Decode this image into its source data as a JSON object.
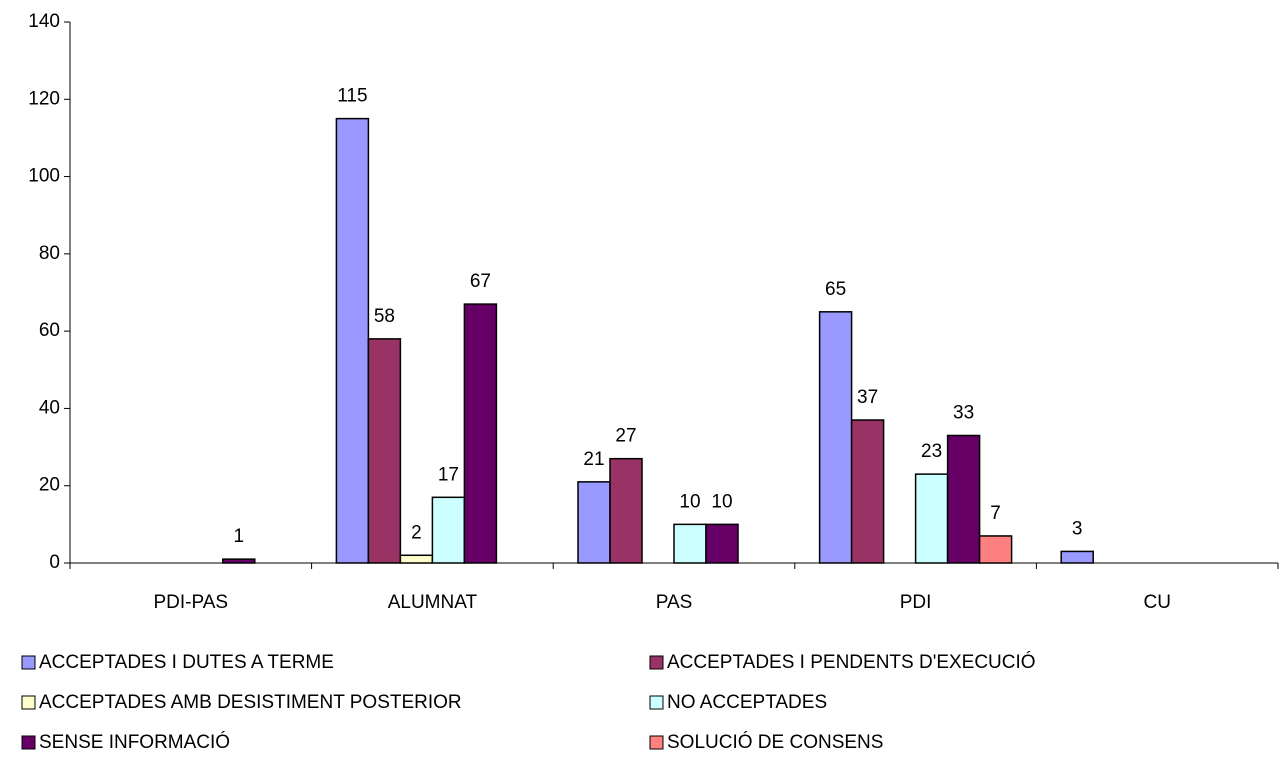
{
  "chart_data": {
    "type": "bar",
    "categories": [
      "PDI-PAS",
      "ALUMNAT",
      "PAS",
      "PDI",
      "CU"
    ],
    "series": [
      {
        "name": "ACCEPTADES I DUTES A TERME",
        "color": "#9999ff",
        "values": [
          null,
          115,
          21,
          65,
          3
        ]
      },
      {
        "name": "ACCEPTADES I PENDENTS D'EXECUCIÓ",
        "color": "#993366",
        "values": [
          null,
          58,
          27,
          37,
          null
        ]
      },
      {
        "name": "ACCEPTADES AMB DESISTIMENT POSTERIOR",
        "color": "#ffffcc",
        "values": [
          null,
          2,
          null,
          null,
          null
        ]
      },
      {
        "name": "NO ACCEPTADES",
        "color": "#ccffff",
        "values": [
          null,
          17,
          10,
          23,
          null
        ]
      },
      {
        "name": "SENSE INFORMACIÓ",
        "color": "#660066",
        "values": [
          1,
          67,
          10,
          33,
          null
        ]
      },
      {
        "name": "SOLUCIÓ DE CONSENS",
        "color": "#ff8080",
        "values": [
          null,
          null,
          null,
          7,
          null
        ]
      }
    ],
    "ylim": [
      0,
      140
    ],
    "yticks": [
      0,
      20,
      40,
      60,
      80,
      100,
      120,
      140
    ],
    "legend": "bottom"
  }
}
